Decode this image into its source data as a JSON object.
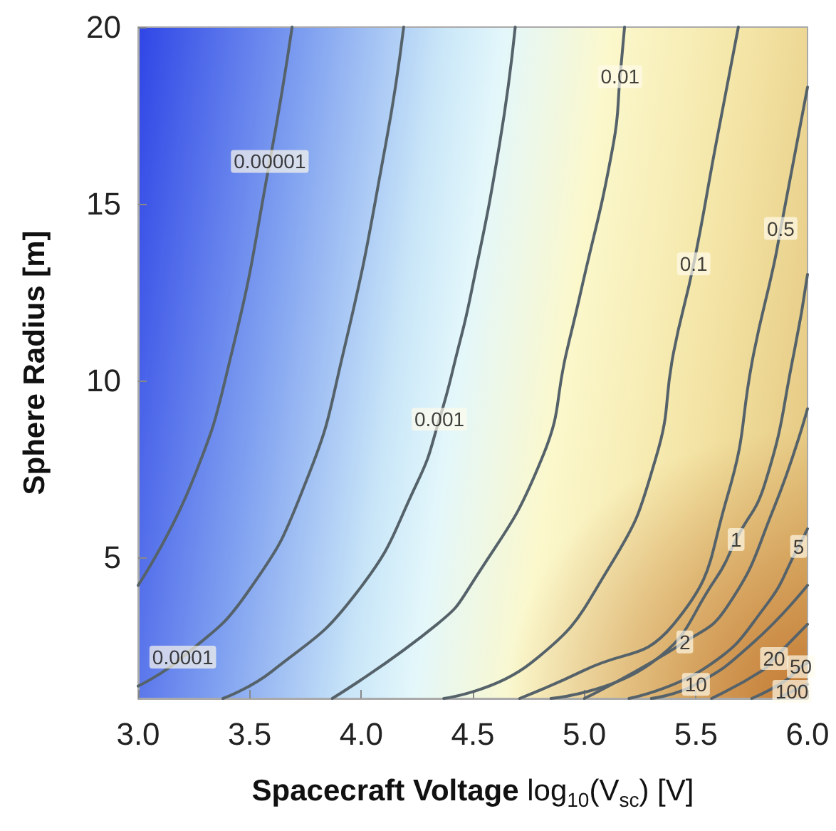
{
  "chart_data": {
    "type": "line",
    "xlabel": "Spacecraft Voltage log$_{10}$(V$_{sc}$) [V]",
    "ylabel": "Sphere Radius [m]",
    "xlim": [
      3.0,
      6.0
    ],
    "xticks": [
      {
        "value": 3.0,
        "label": "3.0"
      },
      {
        "value": 3.5,
        "label": "3.5"
      },
      {
        "value": 4.0,
        "label": "4.0"
      },
      {
        "value": 4.5,
        "label": "4.5"
      },
      {
        "value": 5.0,
        "label": "5.0"
      },
      {
        "value": 5.5,
        "label": "5.5"
      },
      {
        "value": 6.0,
        "label": "6.0"
      }
    ],
    "ylim": [
      1,
      20
    ],
    "yticks": [
      5,
      10,
      15,
      20
    ],
    "series": [
      {
        "color": "#55626a",
        "x": [
          3.0,
          3.24,
          3.42,
          3.59,
          3.69
        ],
        "values": [
          4.2,
          7.1,
          10.8,
          16.2,
          20
        ]
      },
      {
        "color": "#55626a",
        "x": [
          3.0,
          3.2,
          3.49,
          3.75,
          3.92,
          4.11,
          4.19
        ],
        "values": [
          1.35,
          2.17,
          4.0,
          7.1,
          10.8,
          16.7,
          20
        ]
      },
      {
        "color": "#55626a",
        "x": [
          3.38,
          3.6,
          3.98,
          4.25,
          4.35,
          4.43,
          4.49,
          4.62,
          4.69
        ],
        "values": [
          1.0,
          1.77,
          4.0,
          7.1,
          8.9,
          10.8,
          12.4,
          16.7,
          20
        ]
      },
      {
        "color": "#55626a",
        "x": [
          3.87,
          4.34,
          4.49,
          4.81,
          4.92,
          4.98,
          5.13,
          5.16,
          5.18
        ],
        "values": [
          1.0,
          3.1,
          4.2,
          7.8,
          10.8,
          12.4,
          16.7,
          18.6,
          20
        ]
      },
      {
        "color": "#55626a",
        "x": [
          4.37,
          4.76,
          5.11,
          5.32,
          5.4,
          5.49,
          5.59,
          5.69
        ],
        "values": [
          1.0,
          2.0,
          4.7,
          7.8,
          10.8,
          13.3,
          16.7,
          20
        ]
      },
      {
        "color": "#55626a",
        "x": [
          4.71,
          5.0,
          5.4,
          5.64,
          5.76,
          5.85,
          5.88,
          6.0
        ],
        "values": [
          1.0,
          1.8,
          3.1,
          6.7,
          10.8,
          13.3,
          14.3,
          18.3
        ]
      },
      {
        "color": "#55626a",
        "x": [
          4.85,
          5.3,
          5.59,
          5.68,
          5.81,
          5.94,
          6.0
        ],
        "values": [
          1.0,
          2.0,
          4.4,
          5.5,
          7.1,
          10.8,
          13.0
        ]
      },
      {
        "color": "#55626a",
        "x": [
          5.0,
          5.45,
          5.64,
          5.85,
          6.0
        ],
        "values": [
          1.0,
          2.6,
          3.6,
          6.4,
          9.2
        ]
      },
      {
        "color": "#55626a",
        "x": [
          5.2,
          5.55,
          5.81,
          5.96,
          6.0
        ],
        "values": [
          1.0,
          1.9,
          3.6,
          5.3,
          5.8
        ]
      },
      {
        "color": "#55626a",
        "x": [
          5.3,
          5.5,
          5.76,
          6.0
        ],
        "values": [
          1.0,
          1.4,
          2.6,
          4.2
        ]
      },
      {
        "color": "#55626a",
        "x": [
          5.57,
          5.8,
          5.85,
          6.0
        ],
        "values": [
          1.0,
          1.8,
          2.13,
          3.1
        ]
      },
      {
        "color": "#55626a",
        "x": [
          5.75,
          5.9,
          5.97,
          6.0
        ],
        "values": [
          1.0,
          1.5,
          1.9,
          2.0
        ]
      },
      {
        "color": "#55626a",
        "x": [
          5.87,
          5.93,
          6.0
        ],
        "values": [
          1.0,
          1.2,
          1.4
        ]
      }
    ],
    "annotations": [
      {
        "text": "0.00001",
        "x": 3.59,
        "y": 16.2
      },
      {
        "text": "0.0001",
        "x": 3.2,
        "y": 2.17
      },
      {
        "text": "0.001",
        "x": 4.35,
        "y": 8.9
      },
      {
        "text": "0.01",
        "x": 5.16,
        "y": 18.6
      },
      {
        "text": "0.1",
        "x": 5.49,
        "y": 13.3
      },
      {
        "text": "0.5",
        "x": 5.88,
        "y": 14.3
      },
      {
        "text": "1",
        "x": 5.68,
        "y": 5.5
      },
      {
        "text": "5",
        "x": 5.96,
        "y": 5.3
      },
      {
        "text": "2",
        "x": 5.45,
        "y": 2.6
      },
      {
        "text": "20",
        "x": 5.85,
        "y": 2.13
      },
      {
        "text": "10",
        "x": 5.5,
        "y": 1.4
      },
      {
        "text": "50",
        "x": 5.97,
        "y": 1.9
      },
      {
        "text": "100",
        "x": 5.93,
        "y": 1.2
      }
    ]
  }
}
